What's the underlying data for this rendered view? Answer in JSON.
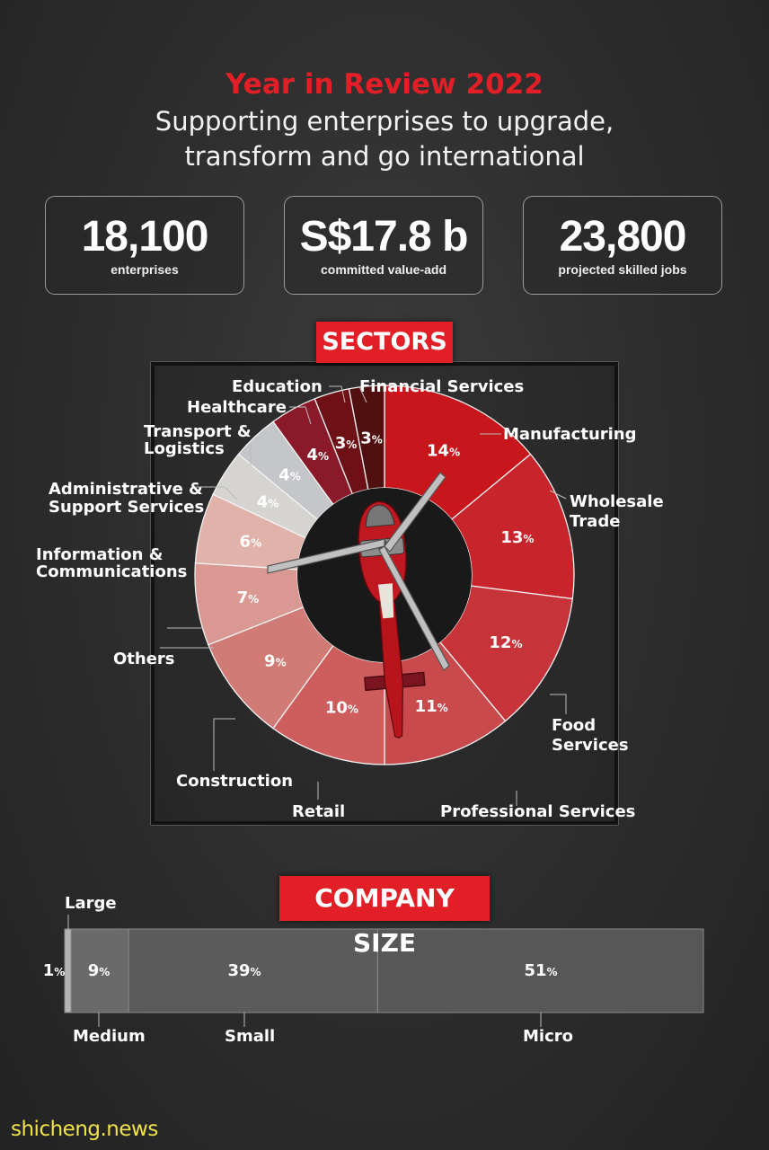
{
  "header": {
    "title": "Year in Review 2022",
    "subtitle_line1": "Supporting enterprises to upgrade,",
    "subtitle_line2": "transform and go international"
  },
  "kpis": [
    {
      "value": "18,100",
      "label": "enterprises"
    },
    {
      "value": "S$17.8 b",
      "label": "committed value-add"
    },
    {
      "value": "23,800",
      "label": "projected skilled jobs"
    }
  ],
  "sectors_heading": "SECTORS",
  "company_size_heading": "COMPANY SIZE",
  "watermark": "shicheng.news",
  "colors": {
    "accent_red": "#e21f26",
    "background": "#2e2e2e"
  },
  "chart_data": [
    {
      "type": "pie",
      "title": "SECTORS",
      "unit": "%",
      "categories": [
        "Manufacturing",
        "Wholesale Trade",
        "Food Services",
        "Professional Services",
        "Retail",
        "Construction",
        "Others",
        "Information & Communications",
        "Administrative & Support Services",
        "Transport & Logistics",
        "Healthcare",
        "Education",
        "Financial Services"
      ],
      "values": [
        14,
        13,
        12,
        11,
        10,
        9,
        7,
        6,
        4,
        4,
        4,
        3,
        3
      ],
      "colors": [
        "#c8161d",
        "#c7252b",
        "#c6343a",
        "#c94a4d",
        "#cd5e5d",
        "#d07b76",
        "#d99891",
        "#e0b2aa",
        "#d6d4d0",
        "#c4c6c9",
        "#8a1a2a",
        "#6e1116",
        "#501010"
      ]
    },
    {
      "type": "bar",
      "title": "COMPANY SIZE",
      "unit": "%",
      "categories": [
        "Large",
        "Medium",
        "Small",
        "Micro"
      ],
      "values": [
        1,
        9,
        39,
        51
      ]
    }
  ]
}
